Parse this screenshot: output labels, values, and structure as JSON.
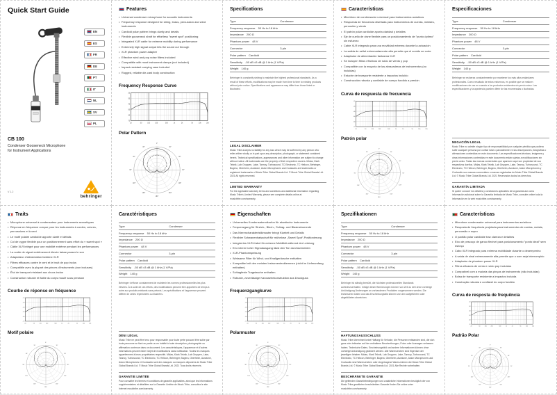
{
  "colors": {
    "brand_orange": "#F7A600",
    "text": "#222222",
    "cut_line": "#CDCDCD"
  },
  "ui": {
    "bullet": "•"
  },
  "cover": {
    "title": "Quick Start Guide",
    "languages": [
      "EN",
      "ES",
      "FR",
      "DE",
      "PT",
      "IT",
      "NL",
      "SV",
      "PL"
    ],
    "model": "CB 100",
    "subtitle_line1": "Condenser Gooseneck Microphone",
    "subtitle_line2": "for Instrument Applications",
    "version": "V 1.2",
    "brand": "behringer"
  },
  "spec_table": {
    "rows": [
      {
        "label": "Type",
        "value": "Condenser",
        "split": true
      },
      {
        "label": "Frequency response",
        "value": "50 Hz to 18 kHz"
      },
      {
        "label": "Impedance",
        "value": "200 Ω"
      },
      {
        "label": "Phantom power",
        "value": "48 V"
      },
      {
        "label": "Connector",
        "value": "3-pin",
        "split": true
      },
      {
        "label": "Polar pattern",
        "value": "Cardioid"
      },
      {
        "label": "Sensitivity",
        "value": "-50 dB ±3 dB @ 1 kHz (1 V/Pa)"
      },
      {
        "label": "Weight",
        "value": "140 g"
      }
    ]
  },
  "panels": {
    "en": {
      "code": "EN",
      "heading": "Features",
      "bullets": [
        "Universal condenser microphone for acoustic instruments",
        "Frequency response designed for string, brass, percussion and wind instruments",
        "Cardioid polar pattern brings clarity and details",
        "Flexible gooseneck shaft for effortless \"sweet spot\" positioning",
        "Integrated XLR cable for extreme mobility during performance",
        "Extremely high signal output lets the sound cut through",
        "XLR phantom power adapter",
        "Effective wind and pop noise filters included",
        "Compatible with most instrument clamps (not included)",
        "Impact-resistant carrying case included",
        "Rugged, reliable die-cast body construction"
      ],
      "freq_title": "Frequency Response Curve",
      "polar_title": "Polar Pattern"
    },
    "es": {
      "code": "ES",
      "heading": "Características",
      "bullets": [
        "Micrófono de condensador universal para instrumentos acústicos",
        "Respuesta de frecuencia diseñada para instrumentos de cuerda, metales, percusión y viento",
        "El patrón polar cardioide aporta claridad y detalles",
        "Eje de cuello de cisne flexible para un posicionamiento de \"punto óptimo\" sin esfuerzo",
        "Cable XLR integrado para una movilidad extrema durante la actuación",
        "La salida de señal extremadamente alta permite que el sonido se corte",
        "Adaptador de alimentación fantasma XLR",
        "Se incluyen filtros efectivos de ruido de viento y pop",
        "Compatible con la mayoría de las abrazaderas de instrumentos (no incluidas)",
        "Estuche de transporte resistente a impactos incluido",
        "Construcción robusta y confiable de cuerpo fundido a presión"
      ],
      "freq_title": "Curva de respuesta de frecuencia",
      "polar_title": "Patrón polar"
    },
    "fr": {
      "code": "FR",
      "heading": "Traits",
      "bullets": [
        "Microphone universel à condensateur pour instruments acoustiques",
        "Réponse en fréquence conçue pour les instruments à cordes, cuivres, percussions et à vent",
        "Le motif polaire cardioïde apporte clarté et détails",
        "Col de cygne flexible pour un positionnement sans effort du « sweet spot »",
        "Câble XLR intégré pour une mobilité extrême pendant les performances",
        "La sortie de signal extrêmement élevée laisse passer le son",
        "Adaptateur d'alimentation fantôme XLR",
        "Filtres efficaces contre le vent et le bruit de pop inclus",
        "Compatible avec la plupart des pinces d'instruments (non incluses)",
        "Étui de transport résistant aux chocs inclus",
        "Construction robuste et fiable du corps moulé sous pression"
      ],
      "freq_title": "Courbe de réponse en fréquence",
      "polar_title": "Motif polaire"
    },
    "de": {
      "code": "DE",
      "heading": "Eigenschaften",
      "bullets": [
        "Universelles Kondensatormikrofon für akustische Instrumente",
        "Frequenzgang für Streich-, Blech-, Schlag- und Blasinstrumente",
        "Das Nierencharakteristikmuster bringt Klarheit und Details",
        "Flexibler Schwanenhalsschaft für mühelose „Sweet Spot“-Positionierung",
        "Integriertes XLR-Kabel für extreme Mobilität während der Leistung",
        "Ein extrem hoher Signalausgang lässt den Ton durchschneiden",
        "XLR-Phantomspeisung",
        "Wirksame Filter für Wind- und Knallgeräusche enthalten",
        "Kompatibel mit den meisten Instrumentenklemmen (nicht im Lieferumfang enthalten)",
        "Schlagfeste Tragetasche enthalten",
        "Robuste, zuverlässige Karosseriekonstruktion aus Druckguss"
      ],
      "freq_title": "Frequenzgangkurve",
      "polar_title": "Polarmuster"
    },
    "pt": {
      "code": "PT",
      "heading": "Características",
      "bullets": [
        "Microfone condensador universal para instrumentos acústicos",
        "Resposta de frequência projetada para instrumentos de cordas, metais, percussão e sopro",
        "O padrão polar cardióide traz clareza e detalhes",
        "Eixo de pescoço de ganso flexível para posicionamento \"ponto ideal\" sem esforço",
        "Cabo XLR integrado para extrema mobilidade durante o desempenho",
        "A saída de sinal extremamente alta permite que o som seja interrompido",
        "Adaptador de phantom power XLR",
        "Filtros eficazes de vento e ruído pop incluídos",
        "Compatível com a maioria das pinças de instrumento (não incluídas)",
        "Bolsa de transporte resistente a impactos incluída",
        "Construção robusta e confiável do corpo fundido"
      ],
      "freq_title": "Curva de resposta de frequência",
      "polar_title": "Padrão Polar"
    }
  },
  "spec_panels": {
    "en": {
      "title": "Specifications",
      "disclaimer": "Behringer is constantly striving to maintain the highest professional standards. As a result of these efforts, modifications may be made from time to time to existing products without prior notice. Specifications and appearance may differ from those listed or illustrated.",
      "legal_title": "LEGAL DISCLAIMER",
      "legal_text": "Music Tribe accepts no liability for any loss which may be suffered by any person who relies either wholly or in part upon any description, photograph, or statement contained herein. Technical specifications, appearances and other information are subject to change without notice. All trademarks are the property of their respective owners. Midas, Klark Teknik, Lab Gruppen, Lake, Tannoy, Turbosound, TC Electronic, TC Helicon, Behringer, Bugera, Oberheim, Auratone, Aston Microphones and Coolaudio are trademarks or registered trademarks of Music Tribe Global Brands Ltd. © Music Tribe Global Brands Ltd. 2021 All rights reserved.",
      "warranty_title": "LIMITED WARRANTY",
      "warranty_text": "For the applicable warranty terms and conditions and additional information regarding Music Tribe's Limited Warranty, please see complete details online at musictribe.com/warranty."
    },
    "es": {
      "title": "Especificaciones",
      "disclaimer": "Behringer se esfuerza constantemente por mantener los más altos estándares profesionales. Como resultado de estos esfuerzos, es posible que se realicen modificaciones de vez en cuando a los productos existentes sin previo aviso. Las especificaciones y la apariencia pueden diferir de las enumeradas o ilustradas.",
      "legal_title": "NEGACIÓN LEGAL",
      "legal_text": "Music Tribe no admite ningún tipo de responsabilidad por cualquier pérdida que pudiera sufrir cualquier persona por confiar total o parcialmente en las descripciones, fotografías o afirmaciones contenidas en este documento. Las especificaciones técnicas, imágenes y otras informaciones contenidas en este documento están sujetas a modificaciones sin previo aviso. Todas las marcas comerciales que aparecen aquí son propiedad de sus respectivos dueños. Midas, Klark Teknik, Lab Gruppen, Lake, Tannoy, Turbosound, TC Electronic, TC Helicon, Behringer, Bugera, Oberheim, Auratone, Aston Microphones y Coolaudio son marcas comerciales o marcas registradas de Music Tribe Global Brands Ltd. © Music Tribe Global Brands Ltd. 2021 Reservados todos los derechos.",
      "warranty_title": "GARANTÍA LIMITADA",
      "warranty_text": "Si quiere conocer los detalles y condiciones aplicables de la garantía así como información adicional sobre la Garantía limitada de Music Tribe, consulte online toda la información en la web musictribe.com/warranty."
    },
    "fr": {
      "title": "Caractéristiques",
      "disclaimer": "Behringer s'efforce constamment de maintenir les normes professionnelles les plus élevées. À la suite de ces efforts, des modifications peuvent être apportées de temps à autre aux produits existants sans préavis. Les spécifications et l'apparence peuvent différer de celles répertoriées ou illustrées.",
      "legal_title": "DÉNI LÉGAL",
      "legal_text": "Music Tribe ne peut être tenu pour responsable pour toute perte pouvant être subie par toute personne se fiant en partie ou en totalité à toute description, photographie ou affirmation contenue dans ce document. Les caractéristiques, l'apparence et d'autres informations peuvent faire l'objet de modifications sans notification. Toutes les marques appartiennent à leurs propriétaires respectifs. Midas, Klark Teknik, Lab Gruppen, Lake, Tannoy, Turbosound, TC Electronic, TC Helicon, Behringer, Bugera, Oberheim, Auratone, Aston Microphones et Coolaudio sont des marques ou marques déposées de Music Tribe Global Brands Ltd. © Music Tribe Global Brands Ltd. 2021 Tous droits réservés.",
      "warranty_title": "GARANTIE LIMITÉE",
      "warranty_text": "Pour connaître les termes et conditions de garantie applicables, ainsi que les informations supplémentaires et détaillées sur la Garantie Limitée de Music Tribe, consultez le site Internet musictribe.com/warranty."
    },
    "de": {
      "title": "Spezifikationen",
      "disclaimer": "Behringer ist ständig bemüht, die höchsten professionellen Standards aufrechtzuerhalten. Infolge dieser Bemühungen können von Zeit zu Zeit ohne vorherige Ankündigung Änderungen an vorhandenen Produkten vorgenommen werden. Die technischen Daten und das Erscheinungsbild können von den aufgeführten oder abgebildeten abweichen.",
      "legal_title": "HAFTUNGSAUSSCHLUSS",
      "legal_text": "Music Tribe übernimmt keine Haftung für Verluste, die Personen entstanden sind, die sich ganz oder teilweise auf hier enthaltene Beschreibungen, Fotos oder Aussagen verlassen haben. Technische Daten, Erscheinungsbild und andere Informationen können ohne vorherige Ankündigung geändert werden. Alle Warenzeichen sind Eigentum der jeweiligen Inhaber. Midas, Klark Teknik, Lab Gruppen, Lake, Tannoy, Turbosound, TC Electronic, TC Helicon, Behringer, Bugera, Oberheim, Auratone, Aston Microphones und Coolaudio sind Warenzeichen oder eingetragene Warenzeichen der Music Tribe Global Brands Ltd. © Music Tribe Global Brands Ltd. 2021 Alle Rechte vorbehalten.",
      "warranty_title": "BESCHRÄNKTE GARANTIE",
      "warranty_text": "Die geltenden Garantiebedingungen und zusätzliche Informationen bezüglich der von Music Tribe gewährten beschränkten Garantie finden Sie online unter musictribe.com/warranty."
    }
  },
  "chart_data": [
    {
      "type": "line",
      "title": "Frequency Response Curve",
      "xlabel": "Frequency (Hz)",
      "ylabel": "Level (dB)",
      "x_scale": "log",
      "xlim": [
        20,
        20000
      ],
      "ylim": [
        -70,
        -20
      ],
      "x_ticks": [
        20,
        50,
        100,
        200,
        500,
        1000,
        2000,
        5000,
        10000,
        20000
      ],
      "x_tick_labels": [
        "20",
        "50",
        "100",
        "200",
        "500",
        "1k",
        "2k",
        "5k",
        "10k",
        "20k"
      ],
      "y_ticks": [
        -20,
        -30,
        -40,
        -50,
        -60,
        -70
      ],
      "grid": true,
      "legend": "none",
      "series": [
        {
          "name": "CB 100 on-axis response",
          "x": [
            20,
            30,
            50,
            80,
            100,
            200,
            300,
            500,
            700,
            1000,
            1500,
            2000,
            3000,
            4000,
            5000,
            6000,
            8000,
            10000,
            12000,
            15000,
            17000,
            18000,
            20000
          ],
          "y": [
            -50,
            -45,
            -41,
            -40,
            -39.5,
            -39,
            -39.2,
            -39,
            -39.1,
            -39,
            -38.8,
            -38.5,
            -37.5,
            -36.5,
            -36,
            -35.8,
            -36,
            -36.5,
            -37.5,
            -39,
            -43,
            -46,
            -55
          ]
        }
      ]
    },
    {
      "type": "polar",
      "title": "Polar Pattern",
      "pattern": "cardioid",
      "rings": 6,
      "angle_step_deg": 30,
      "angle_labels": [
        "0°",
        "30°",
        "60°",
        "90°",
        "120°",
        "150°",
        "180°",
        "150°",
        "120°",
        "90°",
        "60°",
        "30°"
      ]
    }
  ]
}
